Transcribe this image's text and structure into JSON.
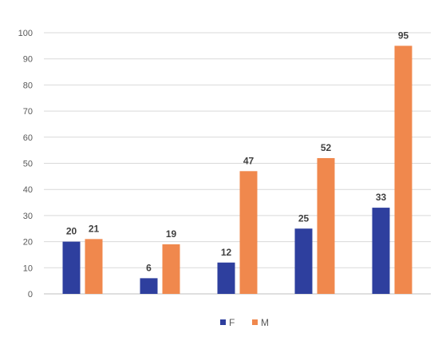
{
  "chart_data": {
    "type": "bar",
    "categories": [
      "",
      "",
      "",
      "",
      ""
    ],
    "series": [
      {
        "name": "F",
        "values": [
          20,
          6,
          12,
          25,
          33
        ]
      },
      {
        "name": "M",
        "values": [
          21,
          19,
          47,
          52,
          95
        ]
      }
    ],
    "title": "",
    "xlabel": "",
    "ylabel": "",
    "ylim": [
      0,
      100
    ],
    "yticks": [
      0,
      10,
      20,
      30,
      40,
      50,
      60,
      70,
      80,
      90,
      100
    ],
    "grid": true,
    "legend": "bottom",
    "colors": {
      "F": "#2e3f9e",
      "M": "#f0884d"
    }
  }
}
